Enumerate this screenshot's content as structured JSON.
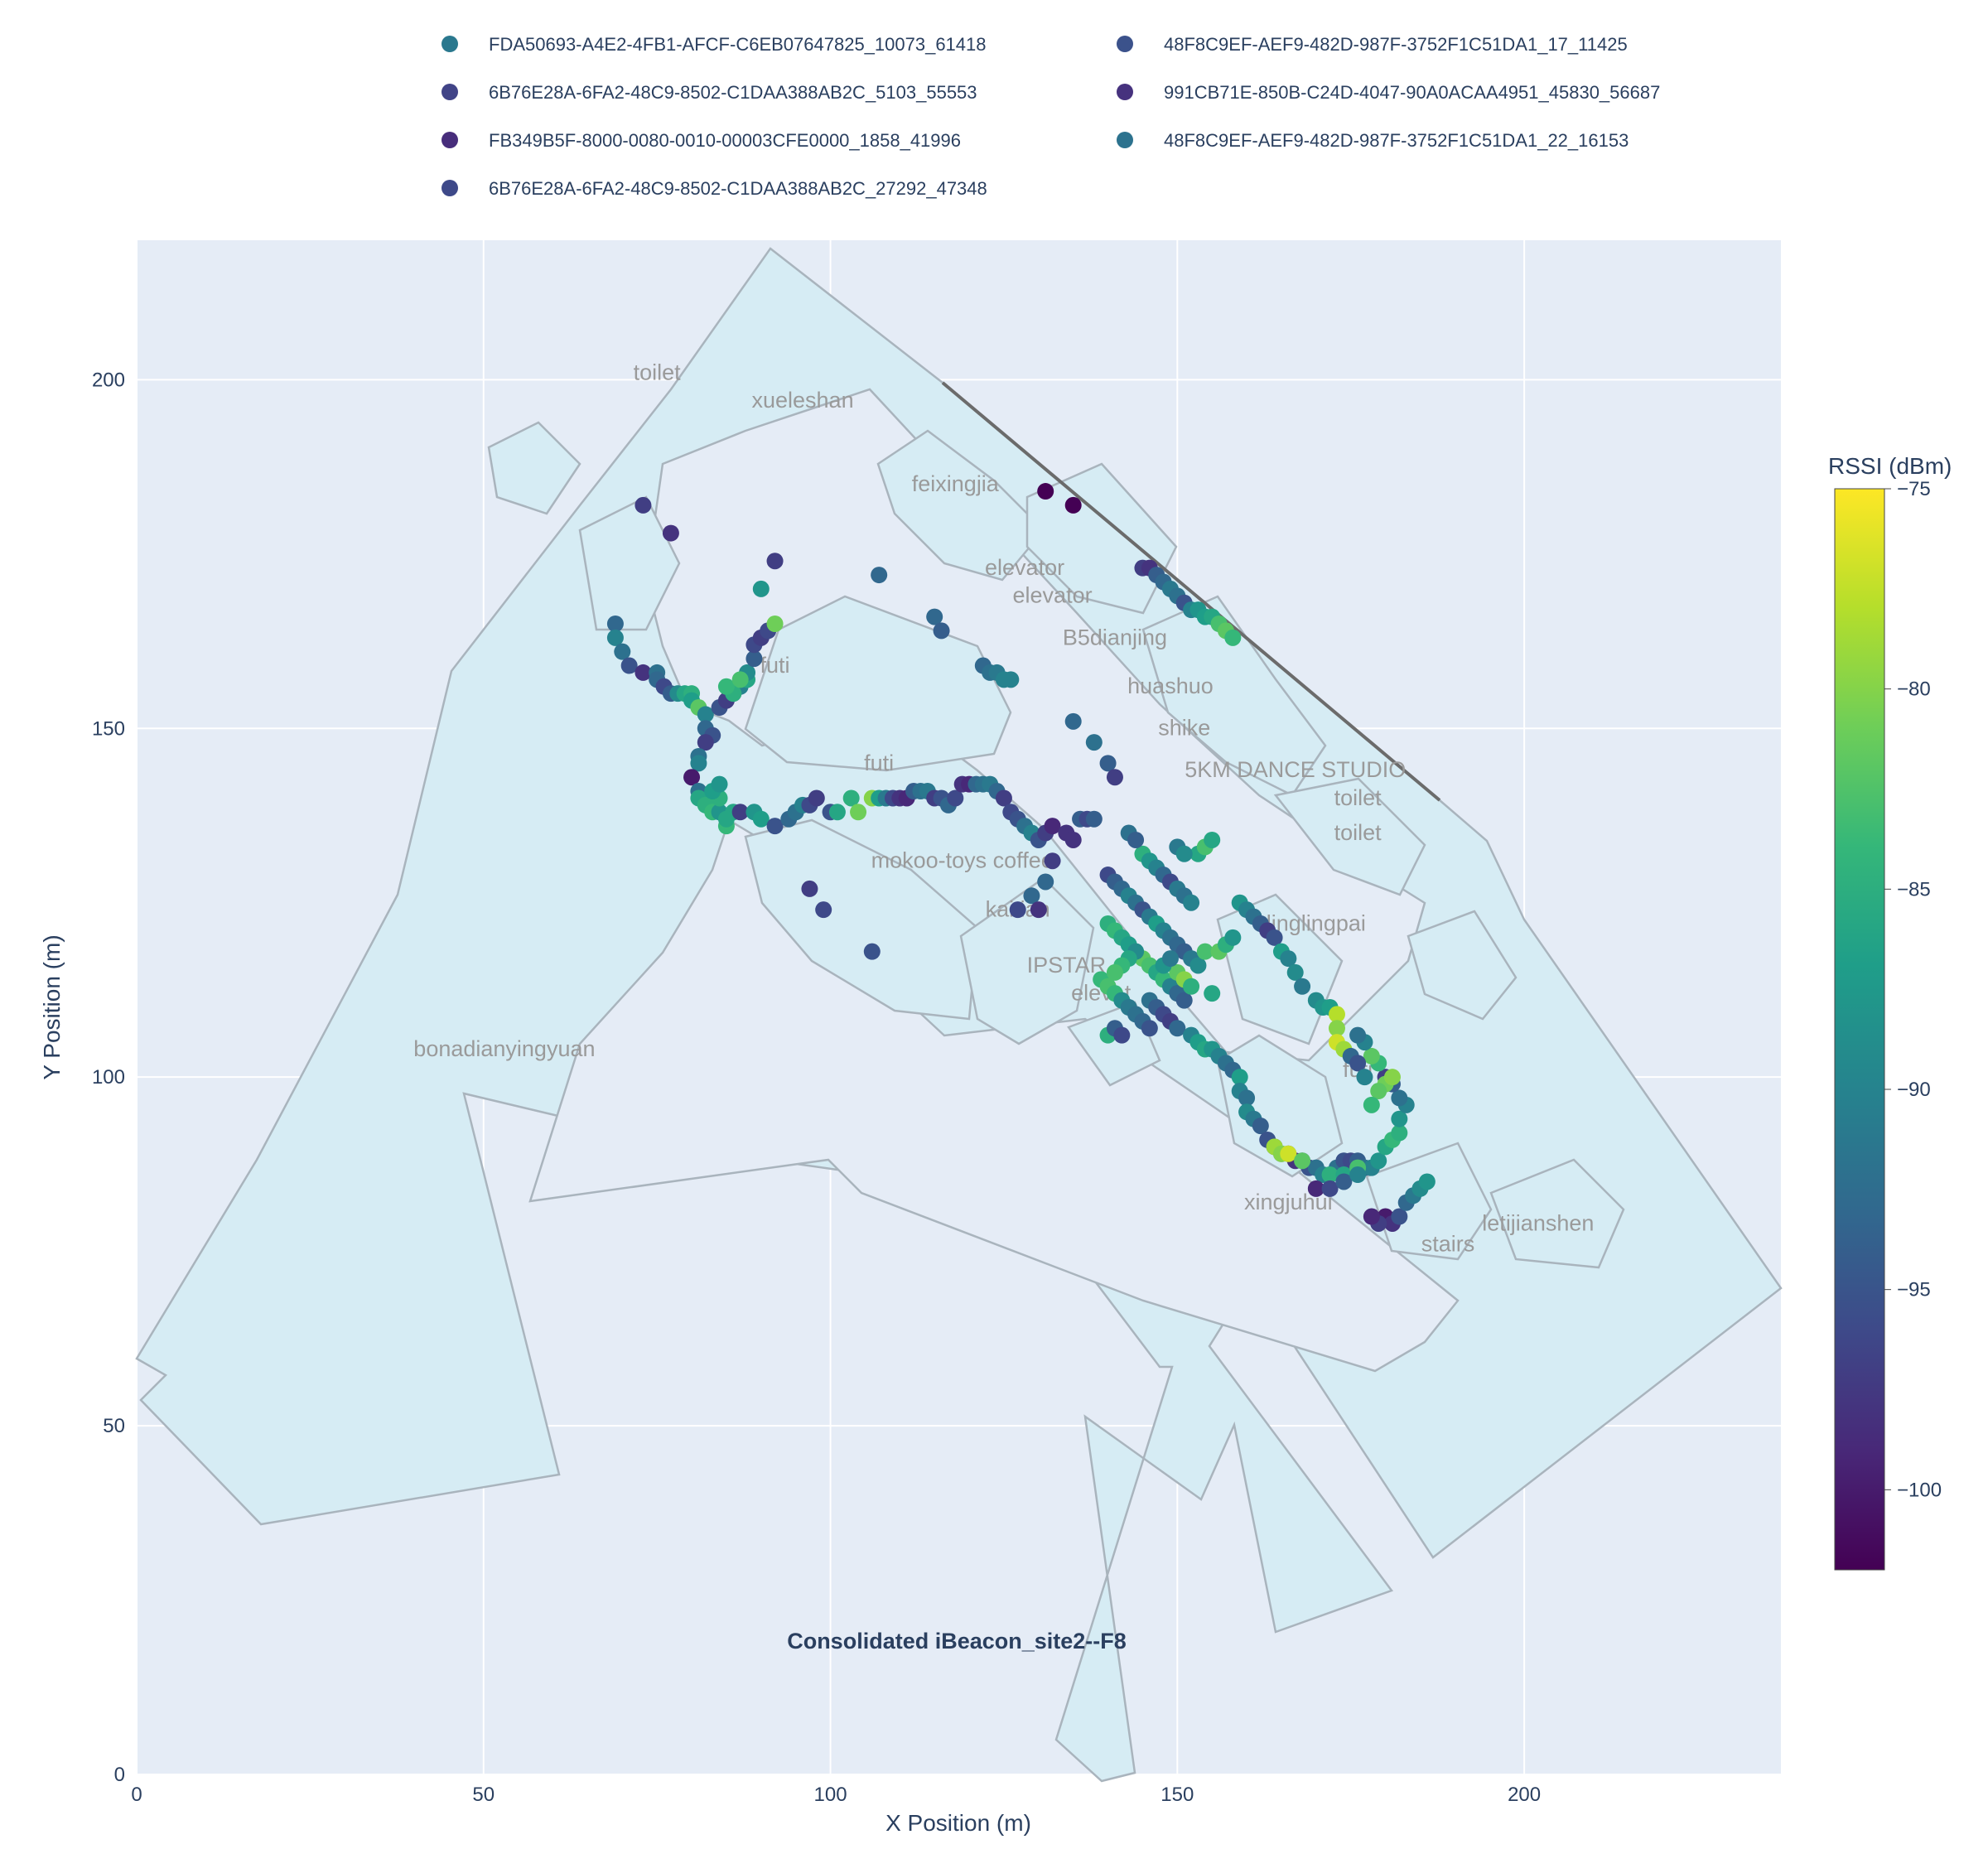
{
  "chart_data": {
    "type": "scatter",
    "title": "Consolidated iBeacon_site2--F8",
    "xlabel": "X Position (m)",
    "ylabel": "Y Position (m)",
    "xlim": [
      0,
      237
    ],
    "ylim": [
      0,
      220
    ],
    "x_ticks": [
      0,
      50,
      100,
      150,
      200
    ],
    "y_ticks": [
      0,
      50,
      100,
      150,
      200
    ],
    "grid": true,
    "legend_position": "top",
    "colorbar": {
      "title": "RSSI (dBm)",
      "range": [
        -102,
        -75
      ],
      "ticks": [
        -75,
        -80,
        -85,
        -90,
        -95,
        -100
      ],
      "colorscale": "Viridis"
    },
    "series": [
      {
        "name": "FDA50693-A4E2-4FB1-AFCF-C6EB07647825_10073_61418",
        "color": "#2a788e"
      },
      {
        "name": "48F8C9EF-AEF9-482D-987F-3752F1C51DA1_17_11425",
        "color": "#3b528b"
      },
      {
        "name": "6B76E28A-6FA2-48C9-8502-C1DAA388AB2C_5103_55553",
        "color": "#414487"
      },
      {
        "name": "991CB71E-850B-C24D-4047-90A0ACAA4951_45830_56687",
        "color": "#46327e"
      },
      {
        "name": "FB349B5F-8000-0080-0010-00003CFE0000_1858_41996",
        "color": "#472d7b"
      },
      {
        "name": "48F8C9EF-AEF9-482D-987F-3752F1C51DA1_22_16153",
        "color": "#2c728e"
      },
      {
        "name": "6B76E28A-6FA2-48C9-8502-C1DAA388AB2C_27292_47348",
        "color": "#3e4989"
      }
    ],
    "room_labels": [
      {
        "text": "toilet",
        "x": 75,
        "y": 200
      },
      {
        "text": "xueleshan",
        "x": 96,
        "y": 196
      },
      {
        "text": "feixingjia",
        "x": 118,
        "y": 184
      },
      {
        "text": "elevator",
        "x": 128,
        "y": 172
      },
      {
        "text": "elevator",
        "x": 132,
        "y": 168
      },
      {
        "text": "B5dianjing",
        "x": 141,
        "y": 162
      },
      {
        "text": "futi",
        "x": 92,
        "y": 158
      },
      {
        "text": "huashuo",
        "x": 149,
        "y": 155
      },
      {
        "text": "shike",
        "x": 151,
        "y": 149
      },
      {
        "text": "futi",
        "x": 107,
        "y": 144
      },
      {
        "text": "5KM DANCE STUDIO",
        "x": 167,
        "y": 143
      },
      {
        "text": "toilet",
        "x": 176,
        "y": 139
      },
      {
        "text": "toilet",
        "x": 176,
        "y": 134
      },
      {
        "text": "mokoo-toys coffee",
        "x": 119,
        "y": 130
      },
      {
        "text": "kaitian",
        "x": 127,
        "y": 123
      },
      {
        "text": "linglingpai",
        "x": 170,
        "y": 121
      },
      {
        "text": "IPSTAR",
        "x": 134,
        "y": 115
      },
      {
        "text": "elevat",
        "x": 139,
        "y": 111
      },
      {
        "text": "bonadianyingyuan",
        "x": 53,
        "y": 103
      },
      {
        "text": "futi",
        "x": 176,
        "y": 100
      },
      {
        "text": "xingjuhui",
        "x": 166,
        "y": 81
      },
      {
        "text": "stairs",
        "x": 189,
        "y": 75
      },
      {
        "text": "letijianshen",
        "x": 202,
        "y": 78
      }
    ],
    "points": [
      [
        73,
        182,
        -97
      ],
      [
        77,
        178,
        -98
      ],
      [
        69,
        165,
        -93
      ],
      [
        69,
        163,
        -90
      ],
      [
        70,
        161,
        -92
      ],
      [
        71,
        159,
        -95
      ],
      [
        73,
        158,
        -98
      ],
      [
        75,
        158,
        -92
      ],
      [
        75,
        157,
        -93
      ],
      [
        76,
        156,
        -96
      ],
      [
        77,
        155,
        -94
      ],
      [
        78,
        155,
        -89
      ],
      [
        79,
        155,
        -86
      ],
      [
        80,
        155,
        -85
      ],
      [
        80,
        154,
        -87
      ],
      [
        81,
        153,
        -82
      ],
      [
        82,
        152,
        -90
      ],
      [
        82,
        150,
        -93
      ],
      [
        83,
        149,
        -95
      ],
      [
        82,
        148,
        -97
      ],
      [
        81,
        146,
        -92
      ],
      [
        81,
        145,
        -90
      ],
      [
        80,
        143,
        -100
      ],
      [
        81,
        141,
        -92
      ],
      [
        81,
        140,
        -86
      ],
      [
        82,
        139,
        -85
      ],
      [
        83,
        138,
        -84
      ],
      [
        84,
        138,
        -88
      ],
      [
        85,
        136,
        -84
      ],
      [
        86,
        138,
        -86
      ],
      [
        84,
        140,
        -85
      ],
      [
        83,
        141,
        -87
      ],
      [
        84,
        142,
        -88
      ],
      [
        85,
        137,
        -86
      ],
      [
        87,
        138,
        -97
      ],
      [
        89,
        138,
        -88
      ],
      [
        90,
        137,
        -87
      ],
      [
        92,
        136,
        -95
      ],
      [
        94,
        137,
        -93
      ],
      [
        95,
        138,
        -92
      ],
      [
        96,
        139,
        -90
      ],
      [
        97,
        139,
        -96
      ],
      [
        98,
        140,
        -97
      ],
      [
        100,
        138,
        -95
      ],
      [
        101,
        138,
        -86
      ],
      [
        103,
        140,
        -85
      ],
      [
        104,
        138,
        -81
      ],
      [
        106,
        140,
        -80
      ],
      [
        107,
        140,
        -87
      ],
      [
        108,
        140,
        -91
      ],
      [
        109,
        140,
        -96
      ],
      [
        110,
        140,
        -98
      ],
      [
        111,
        140,
        -99
      ],
      [
        112,
        141,
        -94
      ],
      [
        113,
        141,
        -92
      ],
      [
        114,
        141,
        -91
      ],
      [
        115,
        140,
        -97
      ],
      [
        116,
        140,
        -95
      ],
      [
        117,
        139,
        -93
      ],
      [
        118,
        140,
        -96
      ],
      [
        119,
        142,
        -98
      ],
      [
        120,
        142,
        -99
      ],
      [
        121,
        142,
        -93
      ],
      [
        122,
        142,
        -92
      ],
      [
        123,
        142,
        -91
      ],
      [
        124,
        141,
        -93
      ],
      [
        125,
        140,
        -97
      ],
      [
        126,
        138,
        -96
      ],
      [
        127,
        137,
        -95
      ],
      [
        128,
        136,
        -92
      ],
      [
        129,
        135,
        -90
      ],
      [
        130,
        134,
        -95
      ],
      [
        131,
        135,
        -97
      ],
      [
        132,
        136,
        -99
      ],
      [
        134,
        135,
        -98
      ],
      [
        136,
        137,
        -94
      ],
      [
        137,
        137,
        -96
      ],
      [
        84,
        153,
        -95
      ],
      [
        85,
        154,
        -97
      ],
      [
        86,
        155,
        -92
      ],
      [
        87,
        156,
        -90
      ],
      [
        88,
        157,
        -86
      ],
      [
        88,
        158,
        -89
      ],
      [
        89,
        160,
        -94
      ],
      [
        89,
        162,
        -96
      ],
      [
        90,
        163,
        -97
      ],
      [
        91,
        164,
        -96
      ],
      [
        92,
        165,
        -81
      ],
      [
        90,
        170,
        -88
      ],
      [
        92,
        174,
        -97
      ],
      [
        86,
        155,
        -85
      ],
      [
        85,
        156,
        -84
      ],
      [
        87,
        157,
        -83
      ],
      [
        107,
        172,
        -93
      ],
      [
        115,
        166,
        -93
      ],
      [
        116,
        164,
        -94
      ],
      [
        122,
        159,
        -93
      ],
      [
        123,
        158,
        -92
      ],
      [
        124,
        158,
        -91
      ],
      [
        125,
        157,
        -90
      ],
      [
        126,
        157,
        -90
      ],
      [
        131,
        184,
        -102
      ],
      [
        135,
        182,
        -102
      ],
      [
        145,
        173,
        -97
      ],
      [
        146,
        173,
        -98
      ],
      [
        147,
        172,
        -94
      ],
      [
        148,
        171,
        -93
      ],
      [
        149,
        170,
        -91
      ],
      [
        150,
        169,
        -92
      ],
      [
        151,
        168,
        -95
      ],
      [
        152,
        167,
        -90
      ],
      [
        153,
        167,
        -88
      ],
      [
        154,
        166,
        -87
      ],
      [
        155,
        166,
        -86
      ],
      [
        156,
        165,
        -83
      ],
      [
        157,
        164,
        -82
      ],
      [
        158,
        163,
        -84
      ],
      [
        135,
        151,
        -93
      ],
      [
        138,
        148,
        -92
      ],
      [
        140,
        145,
        -94
      ],
      [
        141,
        143,
        -97
      ],
      [
        138,
        137,
        -94
      ],
      [
        135,
        134,
        -98
      ],
      [
        132,
        131,
        -97
      ],
      [
        131,
        128,
        -93
      ],
      [
        129,
        126,
        -93
      ],
      [
        127,
        124,
        -96
      ],
      [
        130,
        124,
        -98
      ],
      [
        140,
        129,
        -96
      ],
      [
        141,
        128,
        -94
      ],
      [
        142,
        127,
        -93
      ],
      [
        143,
        126,
        -90
      ],
      [
        144,
        125,
        -92
      ],
      [
        145,
        124,
        -95
      ],
      [
        146,
        123,
        -91
      ],
      [
        147,
        122,
        -87
      ],
      [
        148,
        121,
        -90
      ],
      [
        149,
        120,
        -92
      ],
      [
        150,
        119,
        -93
      ],
      [
        151,
        118,
        -94
      ],
      [
        152,
        117,
        -91
      ],
      [
        153,
        116,
        -89
      ],
      [
        145,
        132,
        -85
      ],
      [
        146,
        131,
        -88
      ],
      [
        147,
        130,
        -90
      ],
      [
        148,
        129,
        -93
      ],
      [
        149,
        128,
        -96
      ],
      [
        150,
        127,
        -91
      ],
      [
        151,
        126,
        -92
      ],
      [
        152,
        125,
        -90
      ],
      [
        153,
        132,
        -86
      ],
      [
        154,
        133,
        -83
      ],
      [
        155,
        134,
        -86
      ],
      [
        140,
        122,
        -85
      ],
      [
        141,
        121,
        -84
      ],
      [
        142,
        120,
        -86
      ],
      [
        143,
        119,
        -87
      ],
      [
        144,
        118,
        -85
      ],
      [
        145,
        117,
        -82
      ],
      [
        146,
        116,
        -83
      ],
      [
        147,
        115,
        -86
      ],
      [
        148,
        114,
        -84
      ],
      [
        149,
        113,
        -90
      ],
      [
        150,
        112,
        -93
      ],
      [
        151,
        111,
        -94
      ],
      [
        139,
        114,
        -84
      ],
      [
        140,
        113,
        -83
      ],
      [
        141,
        112,
        -84
      ],
      [
        142,
        111,
        -89
      ],
      [
        143,
        110,
        -91
      ],
      [
        144,
        109,
        -92
      ],
      [
        145,
        108,
        -93
      ],
      [
        146,
        107,
        -95
      ],
      [
        140,
        106,
        -85
      ],
      [
        141,
        107,
        -94
      ],
      [
        142,
        106,
        -96
      ],
      [
        146,
        111,
        -92
      ],
      [
        147,
        110,
        -94
      ],
      [
        148,
        109,
        -96
      ],
      [
        149,
        108,
        -97
      ],
      [
        150,
        107,
        -93
      ],
      [
        152,
        106,
        -90
      ],
      [
        153,
        105,
        -87
      ],
      [
        154,
        104,
        -86
      ],
      [
        155,
        104,
        -88
      ],
      [
        156,
        103,
        -90
      ],
      [
        157,
        102,
        -92
      ],
      [
        158,
        101,
        -93
      ],
      [
        159,
        100,
        -87
      ],
      [
        159,
        98,
        -90
      ],
      [
        160,
        97,
        -92
      ],
      [
        160,
        95,
        -89
      ],
      [
        161,
        94,
        -91
      ],
      [
        162,
        93,
        -94
      ],
      [
        163,
        91,
        -95
      ],
      [
        164,
        90,
        -97
      ],
      [
        165,
        89,
        -94
      ],
      [
        166,
        89,
        -95
      ],
      [
        167,
        88,
        -98
      ],
      [
        168,
        88,
        -96
      ],
      [
        169,
        87,
        -95
      ],
      [
        170,
        87,
        -92
      ],
      [
        171,
        86,
        -90
      ],
      [
        172,
        86,
        -89
      ],
      [
        173,
        87,
        -92
      ],
      [
        174,
        88,
        -95
      ],
      [
        175,
        88,
        -96
      ],
      [
        176,
        88,
        -94
      ],
      [
        177,
        87,
        -92
      ],
      [
        178,
        87,
        -90
      ],
      [
        179,
        88,
        -88
      ],
      [
        180,
        90,
        -86
      ],
      [
        181,
        91,
        -84
      ],
      [
        182,
        92,
        -85
      ],
      [
        182,
        94,
        -88
      ],
      [
        183,
        96,
        -90
      ],
      [
        182,
        97,
        -92
      ],
      [
        181,
        99,
        -94
      ],
      [
        180,
        100,
        -97
      ],
      [
        179,
        102,
        -84
      ],
      [
        178,
        103,
        -82
      ],
      [
        177,
        105,
        -90
      ],
      [
        176,
        106,
        -92
      ],
      [
        159,
        125,
        -88
      ],
      [
        160,
        124,
        -90
      ],
      [
        161,
        123,
        -92
      ],
      [
        162,
        122,
        -94
      ],
      [
        163,
        121,
        -97
      ],
      [
        164,
        120,
        -95
      ],
      [
        165,
        118,
        -87
      ],
      [
        166,
        117,
        -90
      ],
      [
        167,
        115,
        -89
      ],
      [
        168,
        113,
        -91
      ],
      [
        170,
        111,
        -89
      ],
      [
        171,
        110,
        -88
      ],
      [
        172,
        110,
        -87
      ],
      [
        173,
        109,
        -78
      ],
      [
        173,
        107,
        -80
      ],
      [
        173,
        105,
        -77
      ],
      [
        174,
        104,
        -79
      ],
      [
        175,
        103,
        -93
      ],
      [
        176,
        102,
        -95
      ],
      [
        177,
        100,
        -90
      ],
      [
        164,
        90,
        -79
      ],
      [
        165,
        89,
        -80
      ],
      [
        166,
        89,
        -77
      ],
      [
        168,
        88,
        -82
      ],
      [
        172,
        86,
        -85
      ],
      [
        174,
        86,
        -86
      ],
      [
        176,
        87,
        -83
      ],
      [
        180,
        99,
        -81
      ],
      [
        181,
        100,
        -80
      ],
      [
        179,
        98,
        -82
      ],
      [
        178,
        96,
        -84
      ],
      [
        170,
        84,
        -99
      ],
      [
        172,
        84,
        -96
      ],
      [
        174,
        85,
        -94
      ],
      [
        176,
        86,
        -90
      ],
      [
        180,
        80,
        -100
      ],
      [
        181,
        79,
        -98
      ],
      [
        182,
        80,
        -95
      ],
      [
        183,
        82,
        -93
      ],
      [
        184,
        83,
        -91
      ],
      [
        185,
        84,
        -89
      ],
      [
        186,
        85,
        -88
      ],
      [
        179,
        79,
        -97
      ],
      [
        178,
        80,
        -99
      ],
      [
        155,
        112,
        -86
      ],
      [
        154,
        118,
        -83
      ],
      [
        156,
        118,
        -82
      ],
      [
        157,
        119,
        -85
      ],
      [
        158,
        120,
        -88
      ],
      [
        150,
        115,
        -82
      ],
      [
        151,
        114,
        -80
      ],
      [
        152,
        113,
        -85
      ],
      [
        148,
        116,
        -88
      ],
      [
        149,
        117,
        -91
      ],
      [
        144,
        118,
        -89
      ],
      [
        143,
        117,
        -86
      ],
      [
        142,
        116,
        -84
      ],
      [
        141,
        115,
        -83
      ],
      [
        97,
        127,
        -97
      ],
      [
        99,
        124,
        -96
      ],
      [
        106,
        118,
        -95
      ],
      [
        143,
        135,
        -92
      ],
      [
        144,
        134,
        -94
      ],
      [
        150,
        133,
        -91
      ],
      [
        151,
        132,
        -89
      ]
    ]
  }
}
